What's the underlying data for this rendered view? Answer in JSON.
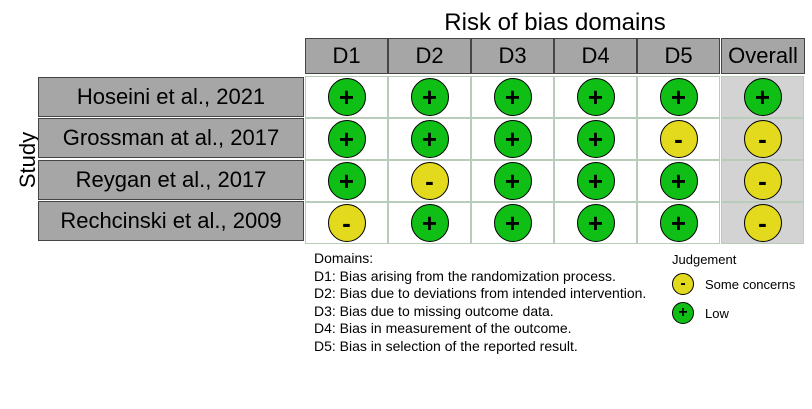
{
  "chart_data": {
    "type": "table",
    "title": "Risk of bias domains",
    "ylabel": "Study",
    "columns": [
      "D1",
      "D2",
      "D3",
      "D4",
      "D5",
      "Overall"
    ],
    "rows": [
      {
        "study": "Hoseini et al., 2021",
        "judgements": [
          "low",
          "low",
          "low",
          "low",
          "low",
          "low"
        ]
      },
      {
        "study": "Grossman at al., 2017",
        "judgements": [
          "low",
          "low",
          "low",
          "low",
          "some",
          "some"
        ]
      },
      {
        "study": "Reygan et al., 2017",
        "judgements": [
          "low",
          "some",
          "low",
          "low",
          "low",
          "some"
        ]
      },
      {
        "study": "Rechcinski et al., 2009",
        "judgements": [
          "some",
          "low",
          "low",
          "low",
          "low",
          "some"
        ]
      }
    ],
    "domains_heading": "Domains:",
    "domain_descriptions": [
      "D1: Bias arising from the randomization process.",
      "D2: Bias due to deviations from intended intervention.",
      "D3: Bias due to missing outcome data.",
      "D4: Bias in measurement of the outcome.",
      "D5: Bias in selection of the reported result."
    ],
    "legend": {
      "title": "Judgement",
      "items": [
        {
          "key": "some",
          "label": "Some concerns",
          "symbol": "-",
          "color": "#e3d91d"
        },
        {
          "key": "low",
          "label": "Low",
          "symbol": "+",
          "color": "#0fbf16"
        }
      ]
    }
  }
}
